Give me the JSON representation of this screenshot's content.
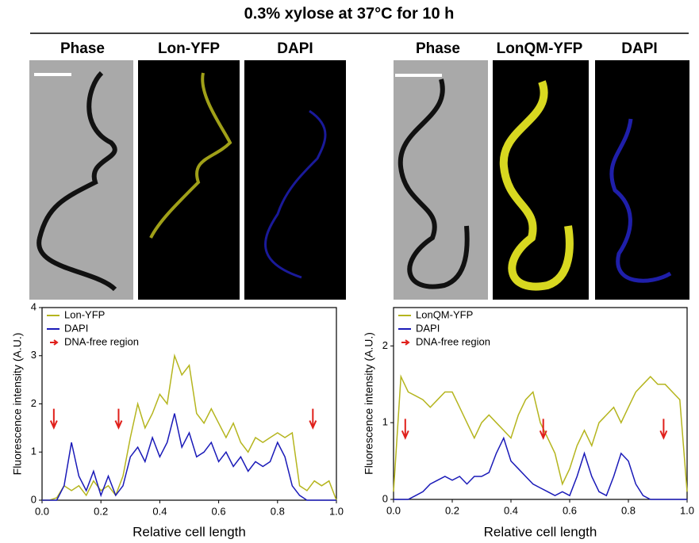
{
  "figure_title": "0.3% xylose at 37°C for 10 h",
  "image_labels": [
    "Phase",
    "Lon-YFP",
    "DAPI",
    "Phase",
    "LonQM-YFP",
    "DAPI"
  ],
  "chart_data": [
    {
      "type": "line",
      "xlabel": "Relative cell length",
      "ylabel": "Fluorescence intensity (A.U.)",
      "xlim": [
        0,
        1
      ],
      "xticks": [
        {
          "value": 0,
          "label": "0.0"
        },
        0.2,
        0.4,
        0.6,
        0.8,
        {
          "value": 1,
          "label": "1.0"
        }
      ],
      "ylim": [
        0,
        4
      ],
      "yticks": [
        0,
        1,
        2,
        3,
        4
      ],
      "legend": "upper-left",
      "x": [
        0,
        0.025,
        0.05,
        0.075,
        0.1,
        0.125,
        0.15,
        0.175,
        0.2,
        0.225,
        0.25,
        0.275,
        0.3,
        0.325,
        0.35,
        0.375,
        0.4,
        0.425,
        0.45,
        0.475,
        0.5,
        0.525,
        0.55,
        0.575,
        0.6,
        0.625,
        0.65,
        0.675,
        0.7,
        0.725,
        0.75,
        0.775,
        0.8,
        0.825,
        0.85,
        0.875,
        0.9,
        0.925,
        0.95,
        0.975,
        1
      ],
      "series": [
        {
          "name": "Lon-YFP",
          "color": "#b5b51e",
          "values": [
            0,
            0,
            0.05,
            0.3,
            0.2,
            0.3,
            0.1,
            0.4,
            0.2,
            0.3,
            0.1,
            0.5,
            1.3,
            2.0,
            1.5,
            1.8,
            2.2,
            2.0,
            3.0,
            2.6,
            2.8,
            1.8,
            1.6,
            1.9,
            1.6,
            1.3,
            1.6,
            1.2,
            1.0,
            1.3,
            1.2,
            1.3,
            1.4,
            1.3,
            1.4,
            0.3,
            0.2,
            0.4,
            0.3,
            0.4,
            0
          ]
        },
        {
          "name": "DAPI",
          "color": "#1a1ab8",
          "values": [
            0,
            0,
            0,
            0.3,
            1.2,
            0.5,
            0.2,
            0.6,
            0.1,
            0.5,
            0.1,
            0.3,
            0.9,
            1.1,
            0.8,
            1.3,
            0.9,
            1.2,
            1.8,
            1.1,
            1.4,
            0.9,
            1.0,
            1.2,
            0.8,
            1.0,
            0.7,
            0.9,
            0.6,
            0.8,
            0.7,
            0.8,
            1.2,
            0.9,
            0.3,
            0.1,
            0,
            0,
            0,
            0,
            0
          ]
        }
      ],
      "arrows": {
        "name": "DNA-free region",
        "color": "#e0201b",
        "x": [
          0.04,
          0.26,
          0.92
        ],
        "y": [
          1.9,
          1.9,
          1.9
        ]
      }
    },
    {
      "type": "line",
      "xlabel": "Relative cell length",
      "ylabel": "Fluorescence intensity (A.U.)",
      "xlim": [
        0,
        1
      ],
      "xticks": [
        {
          "value": 0,
          "label": "0.0"
        },
        0.2,
        0.4,
        0.6,
        0.8,
        {
          "value": 1,
          "label": "1.0"
        }
      ],
      "ylim": [
        0,
        2.5
      ],
      "yticks": [
        0,
        1,
        2
      ],
      "legend": "upper-left",
      "x": [
        0,
        0.025,
        0.05,
        0.075,
        0.1,
        0.125,
        0.15,
        0.175,
        0.2,
        0.225,
        0.25,
        0.275,
        0.3,
        0.325,
        0.35,
        0.375,
        0.4,
        0.425,
        0.45,
        0.475,
        0.5,
        0.525,
        0.55,
        0.575,
        0.6,
        0.625,
        0.65,
        0.675,
        0.7,
        0.725,
        0.75,
        0.775,
        0.8,
        0.825,
        0.85,
        0.875,
        0.9,
        0.925,
        0.95,
        0.975,
        1
      ],
      "series": [
        {
          "name": "LonQM-YFP",
          "color": "#b5b51e",
          "values": [
            0.1,
            1.6,
            1.4,
            1.35,
            1.3,
            1.2,
            1.3,
            1.4,
            1.4,
            1.2,
            1.0,
            0.8,
            1.0,
            1.1,
            1.0,
            0.9,
            0.8,
            1.1,
            1.3,
            1.4,
            1.0,
            0.8,
            0.6,
            0.2,
            0.4,
            0.7,
            0.9,
            0.7,
            1.0,
            1.1,
            1.2,
            1.0,
            1.2,
            1.4,
            1.5,
            1.6,
            1.5,
            1.5,
            1.4,
            1.3,
            0.1
          ]
        },
        {
          "name": "DAPI",
          "color": "#1a1ab8",
          "values": [
            0,
            0,
            0,
            0.05,
            0.1,
            0.2,
            0.25,
            0.3,
            0.25,
            0.3,
            0.2,
            0.3,
            0.3,
            0.35,
            0.6,
            0.8,
            0.5,
            0.4,
            0.3,
            0.2,
            0.15,
            0.1,
            0.05,
            0.1,
            0.05,
            0.3,
            0.6,
            0.3,
            0.1,
            0.05,
            0.3,
            0.6,
            0.5,
            0.2,
            0.05,
            0,
            0,
            0,
            0,
            0,
            0
          ]
        }
      ],
      "arrows": {
        "name": "DNA-free region",
        "color": "#e0201b",
        "x": [
          0.04,
          0.51,
          0.92
        ],
        "y": [
          1.05,
          1.05,
          1.05
        ]
      }
    }
  ]
}
